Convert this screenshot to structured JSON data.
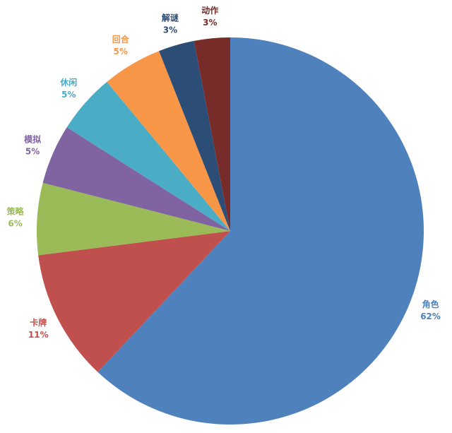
{
  "chart_data": {
    "type": "pie",
    "categories": [
      "角色",
      "卡牌",
      "策略",
      "模拟",
      "休闲",
      "回合",
      "解谜",
      "动作"
    ],
    "values": [
      62,
      11,
      6,
      5,
      5,
      5,
      3,
      3
    ],
    "value_labels": [
      "62%",
      "11%",
      "6%",
      "5%",
      "5%",
      "5%",
      "3%",
      "3%"
    ],
    "colors": [
      "#4f81bd",
      "#c0504d",
      "#9bbb59",
      "#8064a2",
      "#4bacc6",
      "#f79646",
      "#2c4d75",
      "#772c2a"
    ]
  }
}
